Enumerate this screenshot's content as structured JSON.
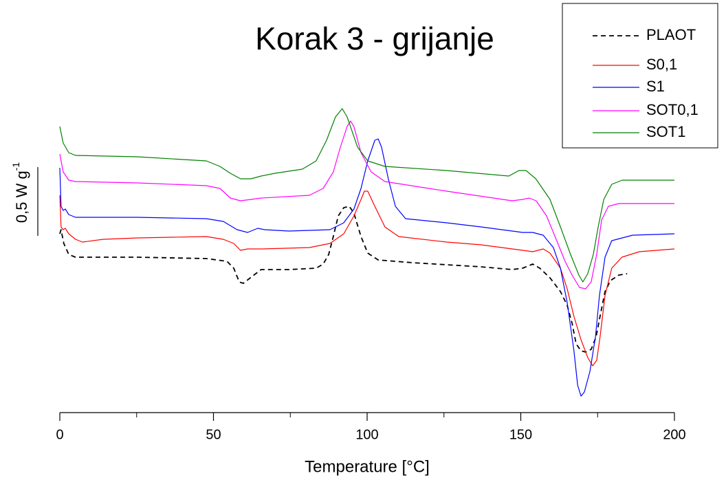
{
  "chart_data": {
    "type": "line",
    "title": "Korak 3 - grijanje",
    "x_label": "Temperature [°C]",
    "xlim": [
      0,
      200
    ],
    "xticks": [
      0,
      50,
      100,
      150,
      200
    ],
    "xminor_ticks": [
      25,
      75,
      125,
      175
    ],
    "ylim": [
      0,
      3
    ],
    "scale_bar": {
      "value": 0.5,
      "label": "0,5 W g",
      "label_sup": "-1"
    },
    "legend": "upper right",
    "series": [
      {
        "name": "PLAOT",
        "color": "#000000",
        "dash": true,
        "x": [
          0,
          0.4,
          1.3,
          2.9,
          5.1,
          25.3,
          47.7,
          54.4,
          56.6,
          58.4,
          59.7,
          62.0,
          65.5,
          74.5,
          83.4,
          85.7,
          87.5,
          89.0,
          90.6,
          92.4,
          94.2,
          95.7,
          98.0,
          100.2,
          103.6,
          114.8,
          137.1,
          147.2,
          150.6,
          153.9,
          156.2,
          159.5,
          162.9,
          165.1,
          166.7,
          168.0,
          169.6,
          171.1,
          172.9,
          174.5,
          175.8,
          177.4,
          179.2,
          181.9,
          184.6
        ],
        "values": [
          1.3,
          1.33,
          1.23,
          1.15,
          1.13,
          1.13,
          1.12,
          1.1,
          1.05,
          0.95,
          0.94,
          0.98,
          1.04,
          1.04,
          1.05,
          1.08,
          1.15,
          1.28,
          1.43,
          1.49,
          1.5,
          1.45,
          1.28,
          1.16,
          1.11,
          1.09,
          1.06,
          1.04,
          1.05,
          1.08,
          1.05,
          0.98,
          0.88,
          0.78,
          0.65,
          0.5,
          0.45,
          0.44,
          0.46,
          0.55,
          0.7,
          0.88,
          0.96,
          1.0,
          1.01
        ]
      },
      {
        "name": "S0,1",
        "color": "#ff0000",
        "dash": false,
        "x": [
          0,
          0.4,
          1.1,
          1.8,
          2.9,
          5.1,
          7.4,
          14.1,
          25.3,
          47.7,
          53.2,
          56.6,
          58.8,
          61.1,
          65.5,
          81.2,
          87.9,
          92.4,
          95.7,
          98.0,
          99.1,
          100.2,
          102.5,
          105.8,
          110.3,
          125.9,
          137.1,
          150.6,
          153.9,
          157.3,
          159.5,
          162.9,
          165.1,
          167.3,
          169.6,
          171.8,
          173.4,
          174.7,
          175.8,
          177.4,
          179.6,
          182.9,
          188.6,
          200
        ],
        "values": [
          1.58,
          1.35,
          1.33,
          1.34,
          1.3,
          1.26,
          1.24,
          1.26,
          1.27,
          1.28,
          1.26,
          1.23,
          1.18,
          1.19,
          1.19,
          1.2,
          1.23,
          1.3,
          1.43,
          1.55,
          1.61,
          1.61,
          1.5,
          1.35,
          1.28,
          1.24,
          1.22,
          1.18,
          1.17,
          1.19,
          1.16,
          1.05,
          0.9,
          0.7,
          0.53,
          0.4,
          0.34,
          0.38,
          0.55,
          0.85,
          1.05,
          1.13,
          1.17,
          1.19
        ]
      },
      {
        "name": "S1",
        "color": "#0000ff",
        "dash": false,
        "x": [
          0,
          0.4,
          1.1,
          1.8,
          2.9,
          5.1,
          25.3,
          47.7,
          53.2,
          57.7,
          61.1,
          64.4,
          66.7,
          74.5,
          87.9,
          92.4,
          95.7,
          98.0,
          100.2,
          102.5,
          103.6,
          104.7,
          106.9,
          109.2,
          112.5,
          125.9,
          137.1,
          150.6,
          153.9,
          157.3,
          160.6,
          162.9,
          165.1,
          167.3,
          168.5,
          169.6,
          170.7,
          172.5,
          174.3,
          175.6,
          177.4,
          179.6,
          186.4,
          200
        ],
        "values": [
          1.78,
          1.5,
          1.47,
          1.48,
          1.44,
          1.42,
          1.42,
          1.41,
          1.39,
          1.33,
          1.31,
          1.34,
          1.33,
          1.32,
          1.33,
          1.38,
          1.48,
          1.63,
          1.83,
          1.98,
          1.99,
          1.93,
          1.7,
          1.5,
          1.41,
          1.38,
          1.35,
          1.31,
          1.31,
          1.29,
          1.2,
          1.05,
          0.8,
          0.45,
          0.2,
          0.12,
          0.15,
          0.3,
          0.55,
          0.85,
          1.13,
          1.25,
          1.29,
          1.3
        ]
      },
      {
        "name": "SOT0,1",
        "color": "#ff00ff",
        "dash": false,
        "x": [
          0,
          1.1,
          2.9,
          5.1,
          25.3,
          47.7,
          52.1,
          55.5,
          58.8,
          62.2,
          65.5,
          81.2,
          85.7,
          89.0,
          91.3,
          93.5,
          94.6,
          95.7,
          98.0,
          101.3,
          105.8,
          125.9,
          147.2,
          150.6,
          152.8,
          155.0,
          158.4,
          161.7,
          164.4,
          166.7,
          169.1,
          171.1,
          172.9,
          174.7,
          176.3,
          178.5,
          181.9,
          200
        ],
        "values": [
          1.88,
          1.75,
          1.69,
          1.68,
          1.67,
          1.65,
          1.63,
          1.56,
          1.54,
          1.55,
          1.56,
          1.58,
          1.63,
          1.75,
          1.93,
          2.08,
          2.12,
          2.08,
          1.89,
          1.75,
          1.68,
          1.61,
          1.54,
          1.55,
          1.56,
          1.54,
          1.43,
          1.25,
          1.1,
          1.0,
          0.91,
          0.9,
          0.95,
          1.15,
          1.4,
          1.5,
          1.52,
          1.52
        ]
      },
      {
        "name": "SOT1",
        "color": "#008000",
        "dash": false,
        "x": [
          0,
          1.1,
          2.9,
          5.1,
          25.3,
          47.7,
          52.1,
          55.5,
          58.8,
          62.2,
          65.5,
          70.0,
          78.9,
          83.4,
          86.8,
          89.7,
          91.9,
          93.5,
          96.9,
          100.2,
          105.8,
          125.9,
          146.1,
          149.4,
          151.7,
          154.9,
          159.5,
          162.9,
          166.2,
          168.9,
          170.2,
          171.8,
          173.6,
          175.2,
          177.0,
          179.6,
          183.0,
          200
        ],
        "values": [
          2.08,
          1.96,
          1.89,
          1.87,
          1.86,
          1.83,
          1.79,
          1.74,
          1.7,
          1.7,
          1.72,
          1.74,
          1.77,
          1.83,
          1.98,
          2.15,
          2.21,
          2.15,
          1.93,
          1.83,
          1.79,
          1.76,
          1.72,
          1.76,
          1.76,
          1.7,
          1.55,
          1.35,
          1.15,
          1.0,
          0.95,
          1.01,
          1.15,
          1.35,
          1.55,
          1.66,
          1.69,
          1.69
        ]
      }
    ]
  }
}
